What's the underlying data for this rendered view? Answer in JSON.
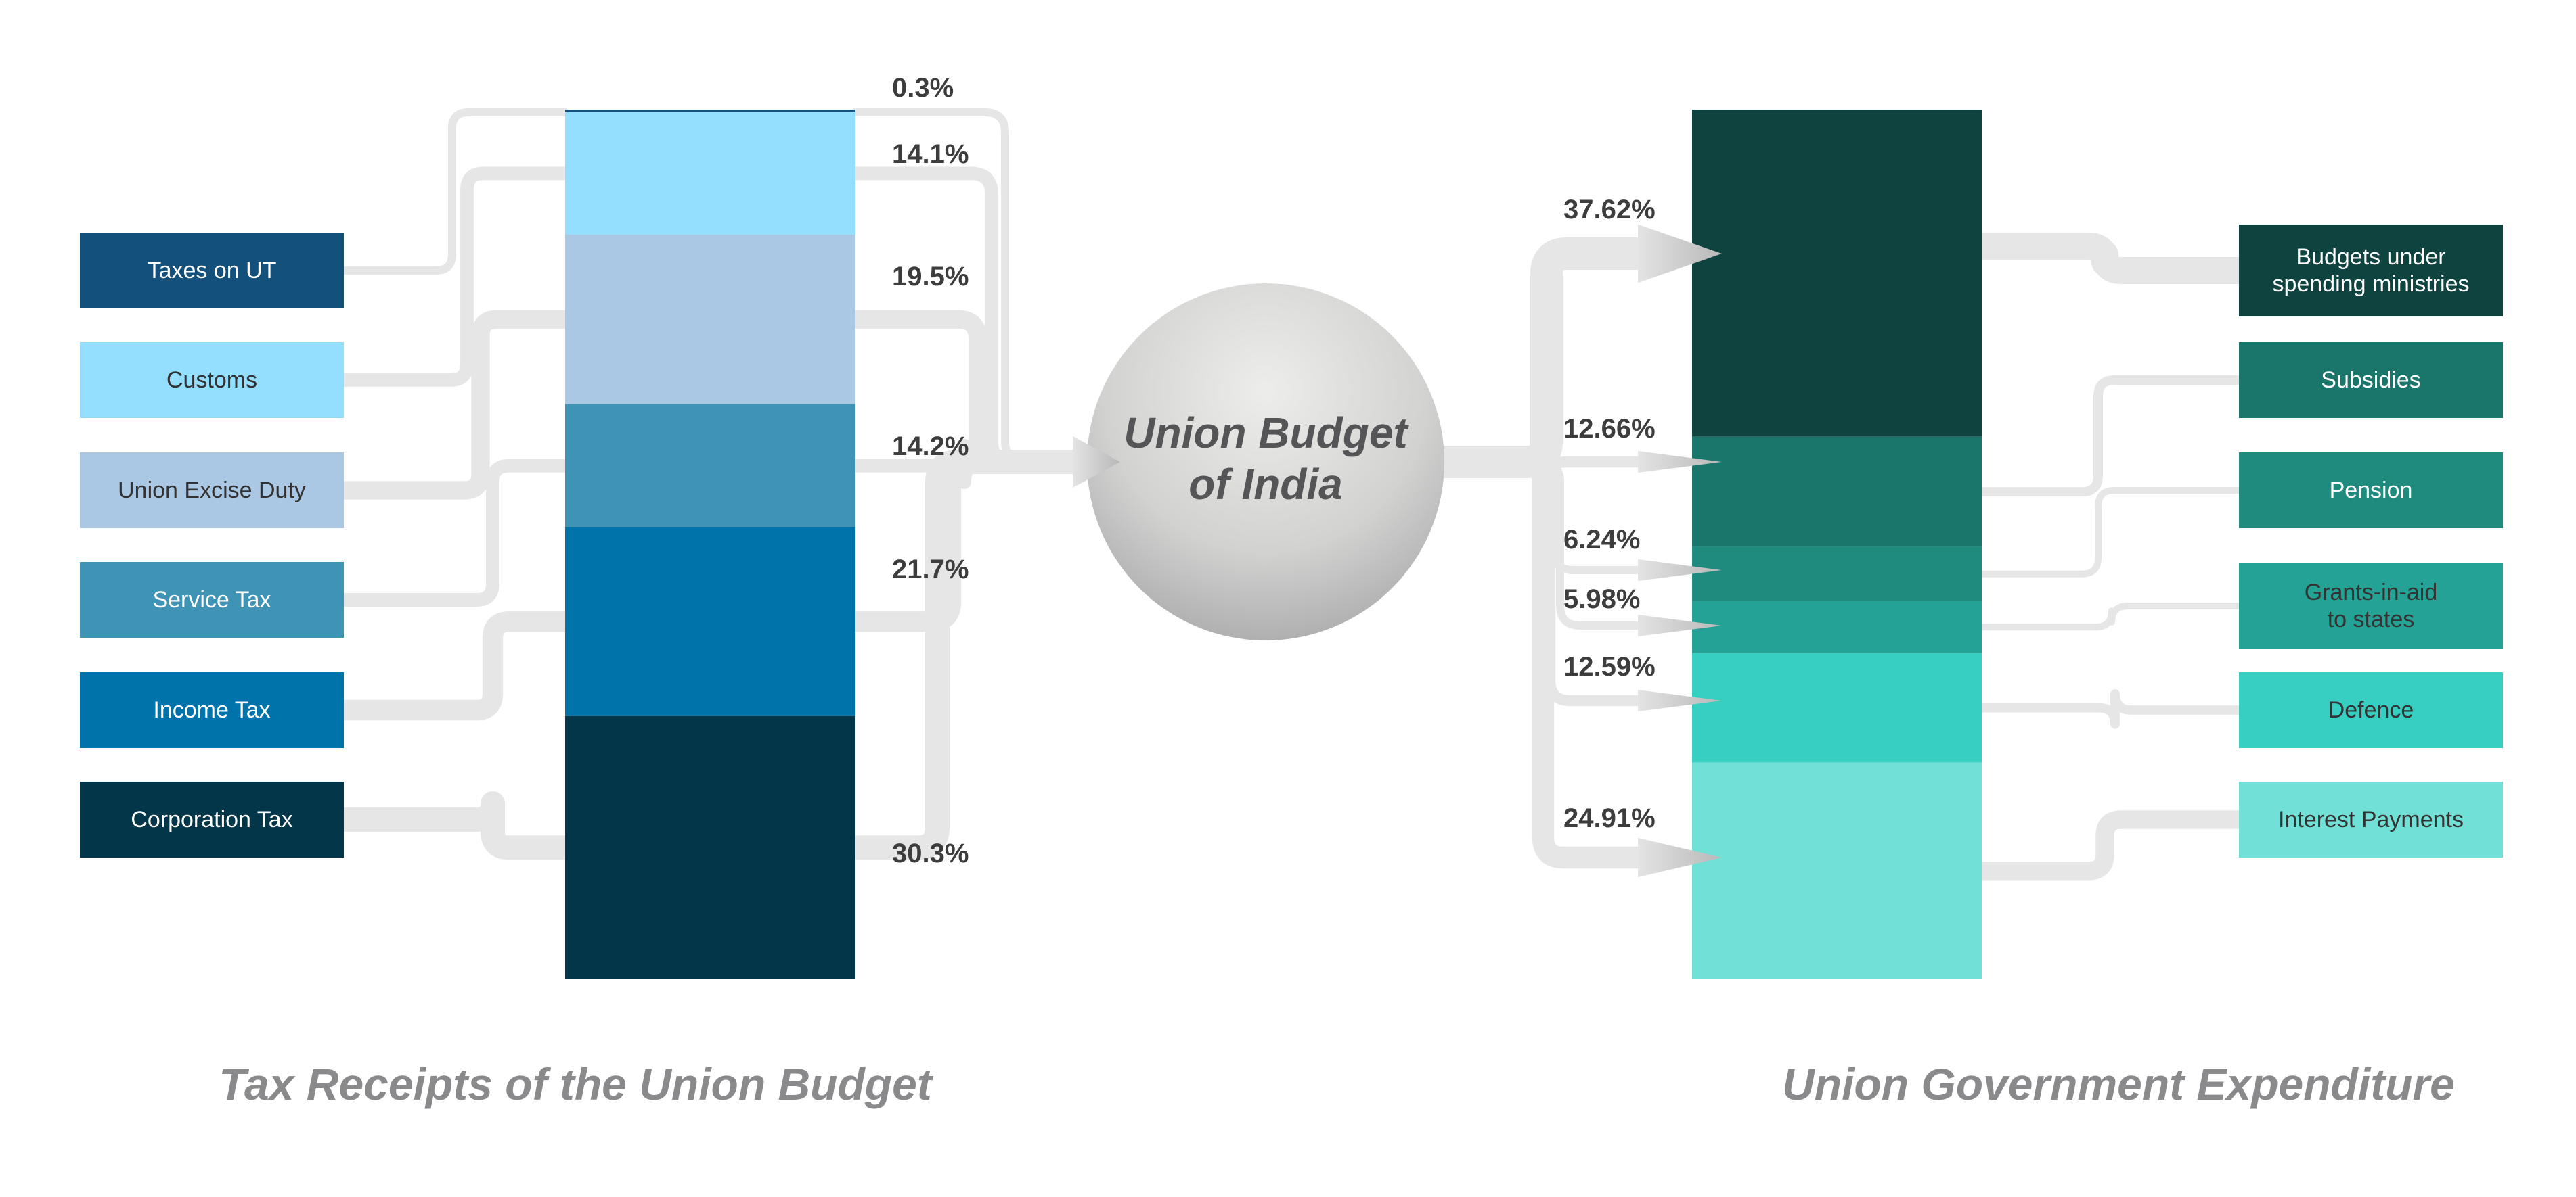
{
  "center": {
    "title": "Union Budget\nof India"
  },
  "receipts": {
    "title": "Tax Receipts of the Union Budget",
    "segments": [
      {
        "label": "Taxes on UT",
        "percent": "0.3%",
        "value": 0.3,
        "color": "#14507c",
        "text_color": "#ffffff"
      },
      {
        "label": "Customs",
        "percent": "14.1%",
        "value": 14.1,
        "color": "#93dffd",
        "text_color": "#333333"
      },
      {
        "label": "Union Excise Duty",
        "percent": "19.5%",
        "value": 19.5,
        "color": "#aac7e3",
        "text_color": "#333333"
      },
      {
        "label": "Service Tax",
        "percent": "14.2%",
        "value": 14.2,
        "color": "#3f94b6",
        "text_color": "#ffffff"
      },
      {
        "label": "Income Tax",
        "percent": "21.7%",
        "value": 21.7,
        "color": "#0073ab",
        "text_color": "#ffffff"
      },
      {
        "label": "Corporation Tax",
        "percent": "30.3%",
        "value": 30.3,
        "color": "#04364a",
        "text_color": "#ffffff"
      }
    ]
  },
  "expenditure": {
    "title": "Union Government Expenditure",
    "segments": [
      {
        "label": "Budgets under\nspending ministries",
        "percent": "37.62%",
        "value": 37.62,
        "color": "#0f4340",
        "text_color": "#ffffff"
      },
      {
        "label": "Subsidies",
        "percent": "12.66%",
        "value": 12.66,
        "color": "#1a756b",
        "text_color": "#ffffff"
      },
      {
        "label": "Pension",
        "percent": "6.24%",
        "value": 6.24,
        "color": "#1f8a7e",
        "text_color": "#ffffff"
      },
      {
        "label": "Grants-in-aid\nto states",
        "percent": "5.98%",
        "value": 5.98,
        "color": "#25a296",
        "text_color": "#333333"
      },
      {
        "label": "Defence",
        "percent": "12.59%",
        "value": 12.59,
        "color": "#37cfc1",
        "text_color": "#333333"
      },
      {
        "label": "Interest Payments",
        "percent": "24.91%",
        "value": 24.91,
        "color": "#71e0d6",
        "text_color": "#333333"
      }
    ]
  }
}
